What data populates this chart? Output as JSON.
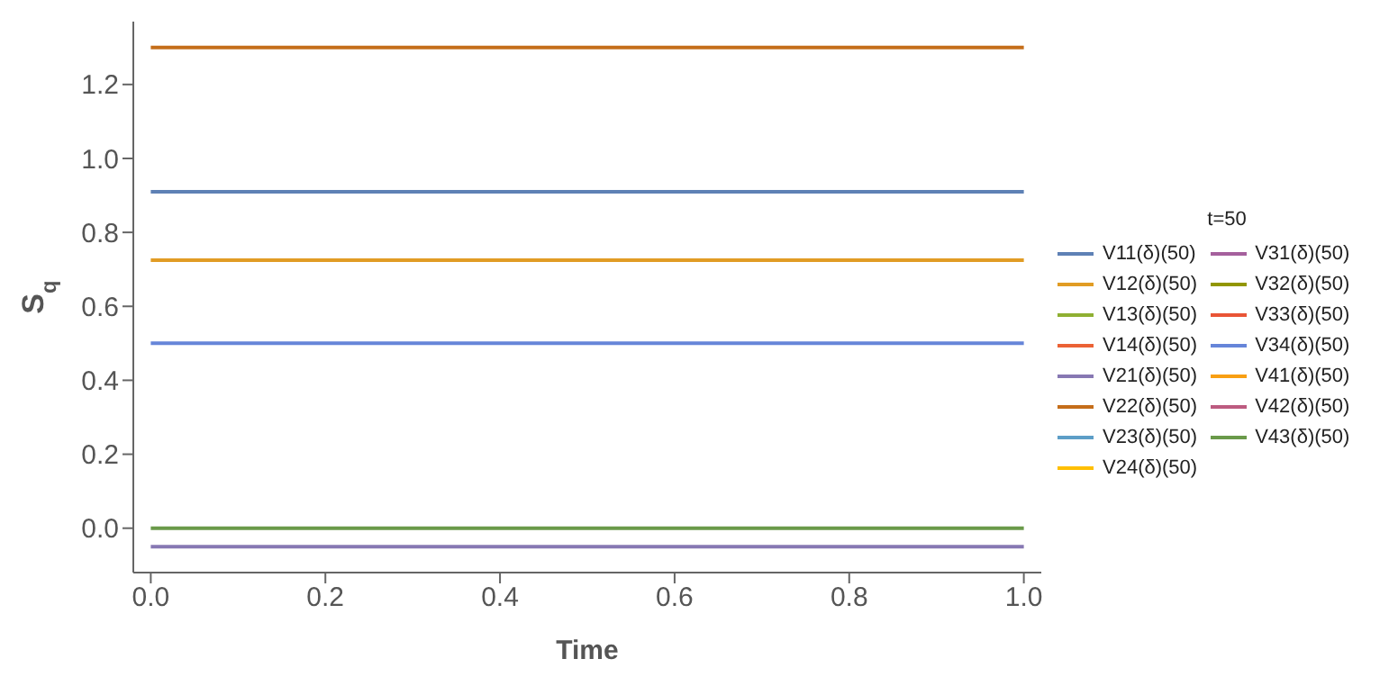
{
  "chart_data": {
    "type": "line",
    "xlabel": "Time",
    "ylabel": "S$_{q}$",
    "legend_title": "t=50",
    "legend": "right",
    "x": [
      0,
      1
    ],
    "xlim": [
      -0.02,
      1.02
    ],
    "xticks": [
      {
        "value": 0,
        "label": "0.0"
      },
      {
        "value": 0.2,
        "label": "0.2"
      },
      {
        "value": 0.4,
        "label": "0.4"
      },
      {
        "value": 0.6,
        "label": "0.6"
      },
      {
        "value": 0.8,
        "label": "0.8"
      },
      {
        "value": 1,
        "label": "1.0"
      }
    ],
    "ylim": [
      -0.12,
      1.37
    ],
    "yticks": [
      {
        "value": 0,
        "label": "0.0"
      },
      {
        "value": 0.2,
        "label": "0.2"
      },
      {
        "value": 0.4,
        "label": "0.4"
      },
      {
        "value": 0.6,
        "label": "0.6"
      },
      {
        "value": 0.8,
        "label": "0.8"
      },
      {
        "value": 1,
        "label": "1.0"
      },
      {
        "value": 1.2,
        "label": "1.2"
      }
    ],
    "grid": false,
    "marker": "none",
    "line_style": "solid",
    "series": [
      {
        "name": "V11(δ)(50)",
        "color": "#5e81b5",
        "values": [
          0.91,
          0.91
        ]
      },
      {
        "name": "V12(δ)(50)",
        "color": "#e19c24",
        "values": [
          0.725,
          0.725
        ]
      },
      {
        "name": "V13(δ)(50)",
        "color": "#8fb032",
        "values": [
          null,
          null
        ]
      },
      {
        "name": "V14(δ)(50)",
        "color": "#eb6235",
        "values": [
          null,
          null
        ]
      },
      {
        "name": "V21(δ)(50)",
        "color": "#8778b3",
        "values": [
          -0.05,
          -0.05
        ]
      },
      {
        "name": "V22(δ)(50)",
        "color": "#c56e1a",
        "values": [
          1.3,
          1.3
        ]
      },
      {
        "name": "V23(δ)(50)",
        "color": "#5d9ec7",
        "values": [
          null,
          null
        ]
      },
      {
        "name": "V24(δ)(50)",
        "color": "#ffbf00",
        "values": [
          null,
          null
        ]
      },
      {
        "name": "V31(δ)(50)",
        "color": "#a5609d",
        "values": [
          null,
          null
        ]
      },
      {
        "name": "V32(δ)(50)",
        "color": "#929600",
        "values": [
          null,
          null
        ]
      },
      {
        "name": "V33(δ)(50)",
        "color": "#e95536",
        "values": [
          null,
          null
        ]
      },
      {
        "name": "V34(δ)(50)",
        "color": "#6685d9",
        "values": [
          0.5,
          0.5
        ]
      },
      {
        "name": "V41(δ)(50)",
        "color": "#f89f13",
        "values": [
          null,
          null
        ]
      },
      {
        "name": "V42(δ)(50)",
        "color": "#bc5b80",
        "values": [
          null,
          null
        ]
      },
      {
        "name": "V43(δ)(50)",
        "color": "#6a9a4a",
        "values": [
          0,
          0
        ]
      }
    ]
  }
}
